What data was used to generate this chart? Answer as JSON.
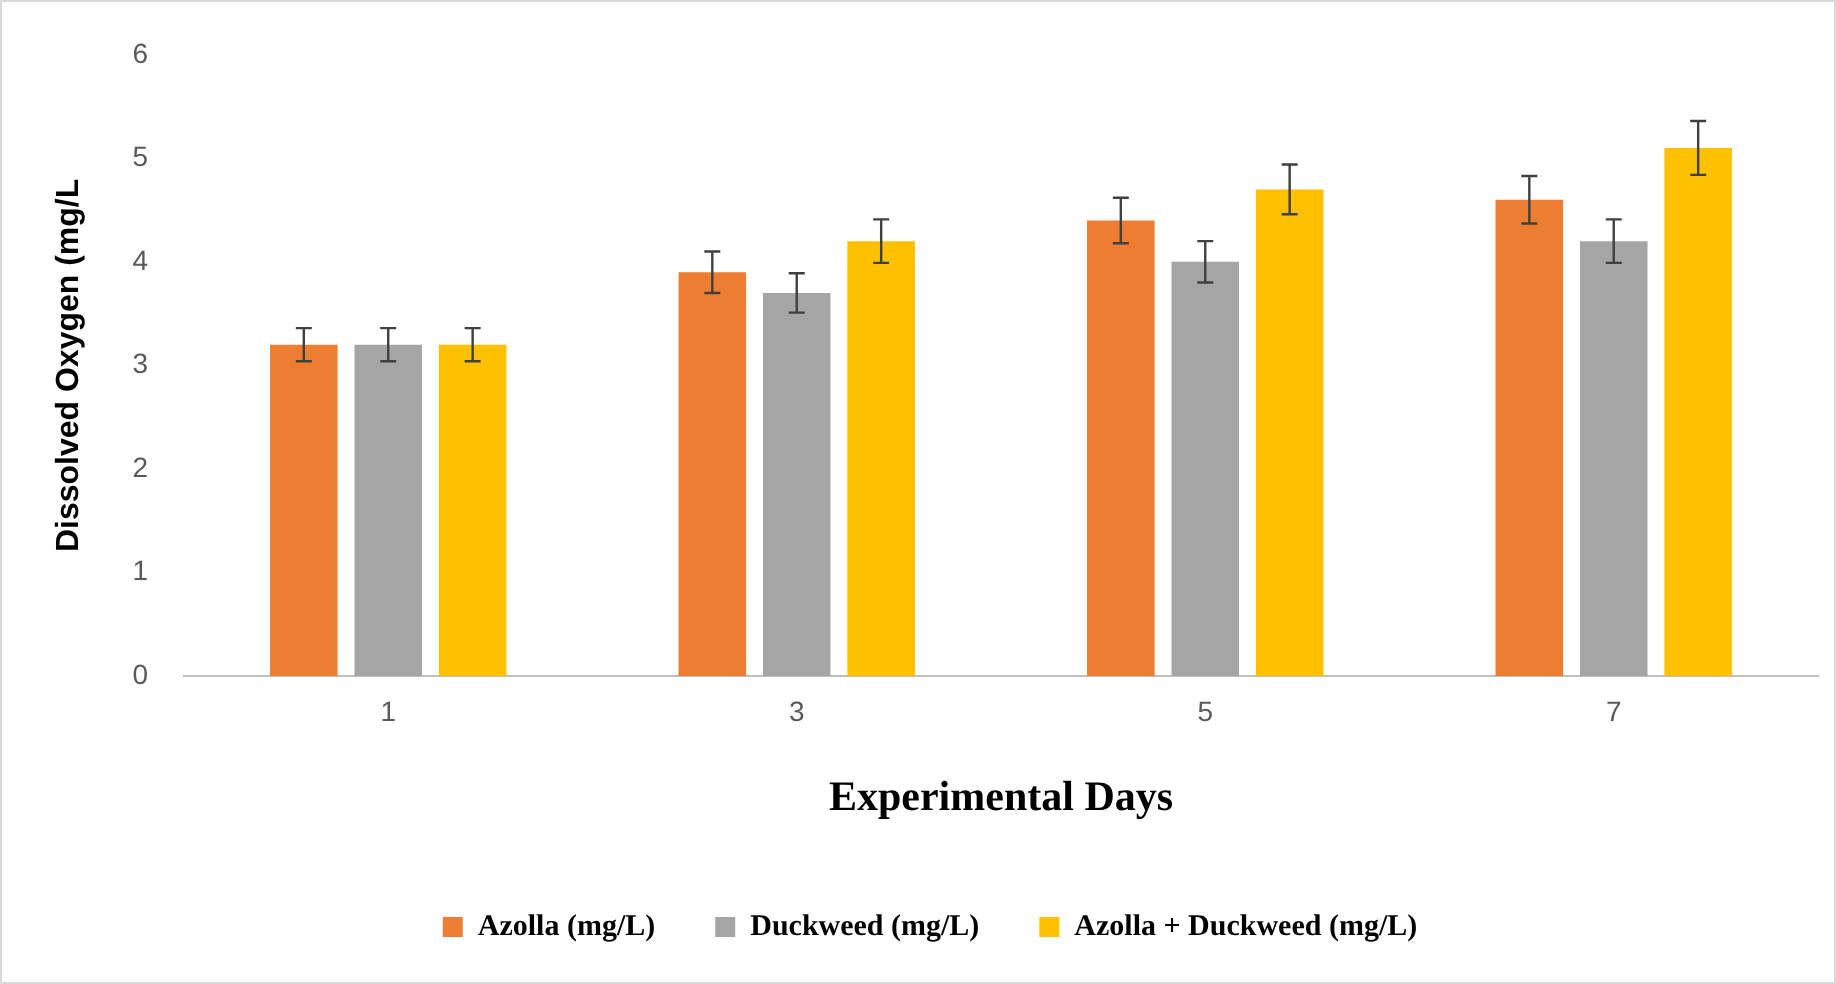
{
  "chart_data": {
    "type": "bar",
    "xlabel": "Experimental Days",
    "ylabel": "Dissolved Oxygen (mg/L",
    "categories": [
      "1",
      "3",
      "5",
      "7"
    ],
    "series": [
      {
        "name": "Azolla (mg/L)",
        "color": "#ed7d31",
        "values": [
          3.2,
          3.9,
          4.4,
          4.6
        ],
        "errors": [
          0.16,
          0.2,
          0.22,
          0.23
        ]
      },
      {
        "name": "Duckweed (mg/L)",
        "color": "#a5a5a5",
        "values": [
          3.2,
          3.7,
          4.0,
          4.2
        ],
        "errors": [
          0.16,
          0.19,
          0.2,
          0.21
        ]
      },
      {
        "name": "Azolla + Duckweed (mg/L)",
        "color": "#ffc000",
        "values": [
          3.2,
          4.2,
          4.7,
          5.1
        ],
        "errors": [
          0.16,
          0.21,
          0.24,
          0.26
        ]
      }
    ],
    "ylim": [
      0,
      6
    ],
    "yticks": [
      0,
      1,
      2,
      3,
      4,
      5,
      6
    ],
    "grid": false,
    "legend": "bottom"
  }
}
